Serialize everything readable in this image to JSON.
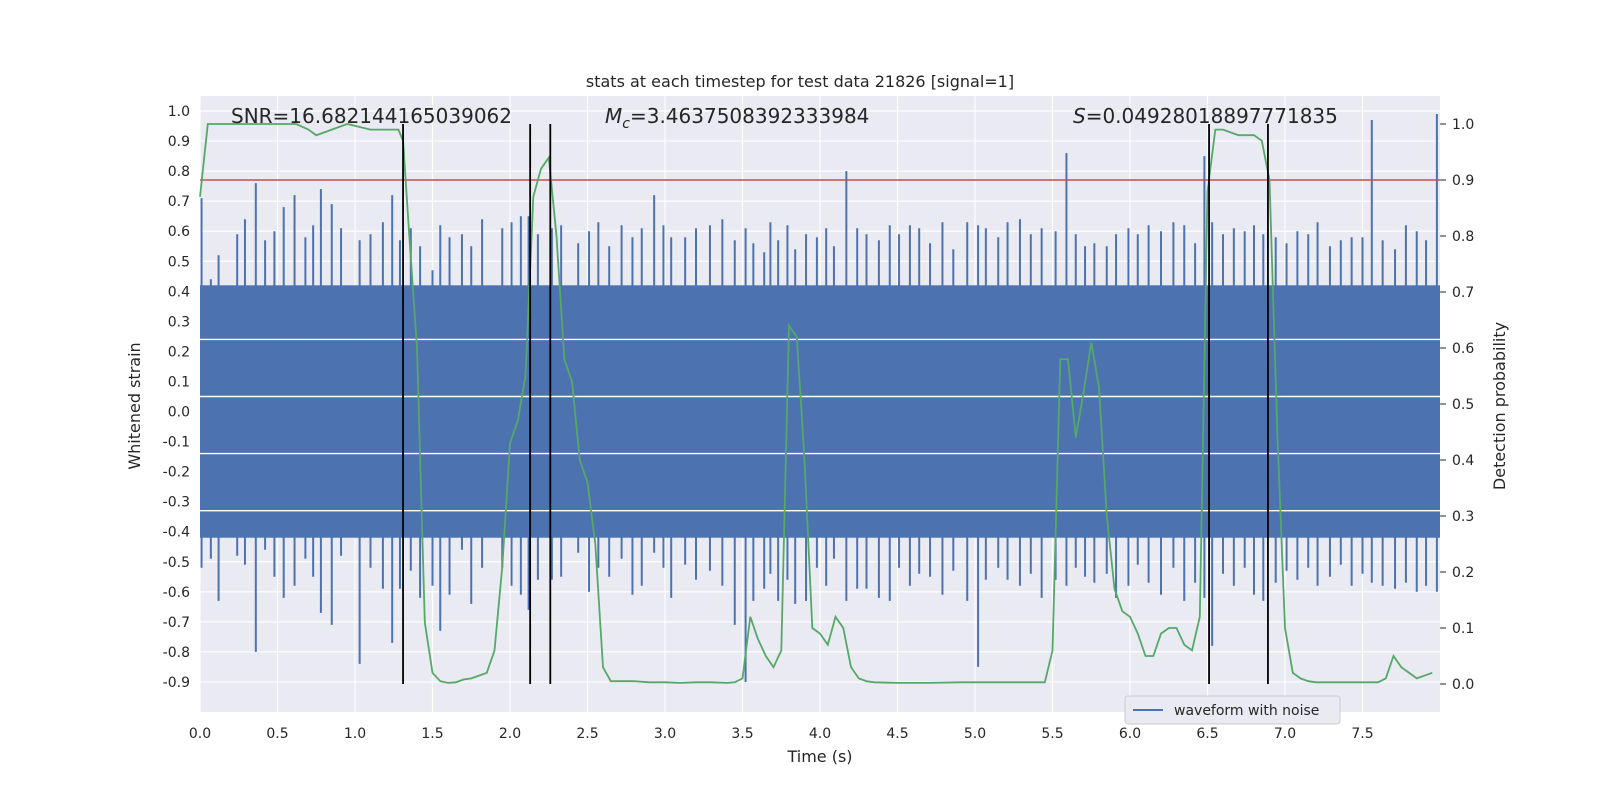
{
  "chart_data": {
    "type": "line",
    "title": "stats at each timestep for test data 21826 [signal=1]",
    "xlabel": "Time (s)",
    "ylabel": "Whitened strain",
    "y2label": "Detection probability",
    "xlim": [
      0.0,
      8.0
    ],
    "ylim": [
      -1.0,
      1.05
    ],
    "y2lim": [
      -0.05,
      1.05
    ],
    "xticks": [
      "0.0",
      "0.5",
      "1.0",
      "1.5",
      "2.0",
      "2.5",
      "3.0",
      "3.5",
      "4.0",
      "4.5",
      "5.0",
      "5.5",
      "6.0",
      "6.5",
      "7.0",
      "7.5"
    ],
    "yticks": [
      "1.0",
      "0.9",
      "0.8",
      "0.7",
      "0.6",
      "0.5",
      "0.4",
      "0.3",
      "0.2",
      "0.1",
      "0.0",
      "-0.1",
      "-0.2",
      "-0.3",
      "-0.4",
      "-0.5",
      "-0.6",
      "-0.7",
      "-0.8",
      "-0.9"
    ],
    "y2ticks": [
      "1.0",
      "0.9",
      "0.8",
      "0.7",
      "0.6",
      "0.5",
      "0.4",
      "0.3",
      "0.2",
      "0.1",
      "0.0"
    ],
    "annotations": {
      "snr": "SNR=16.682144165039062",
      "mc": "=3.4637508392333984",
      "s": "=0.04928018897771835"
    },
    "legend": {
      "label": "waveform with noise",
      "position": "bottom-right"
    },
    "threshold": 0.9,
    "vlines": [
      1.31,
      2.13,
      2.26,
      6.51,
      6.89
    ],
    "colors": {
      "waveform": "#4c72b0",
      "probability": "#55a868",
      "threshold": "#c44e52",
      "vline": "#000000",
      "background": "#eaeaf2"
    },
    "waveform": {
      "name": "waveform with noise",
      "spikes": [
        [
          0.01,
          0.71,
          -0.52
        ],
        [
          0.07,
          0.44,
          -0.49
        ],
        [
          0.12,
          0.52,
          -0.63
        ],
        [
          0.24,
          0.59,
          -0.48
        ],
        [
          0.29,
          0.64,
          -0.51
        ],
        [
          0.36,
          0.76,
          -0.8
        ],
        [
          0.42,
          0.57,
          -0.46
        ],
        [
          0.48,
          0.6,
          -0.55
        ],
        [
          0.54,
          0.68,
          -0.62
        ],
        [
          0.61,
          0.72,
          -0.58
        ],
        [
          0.68,
          0.58,
          -0.49
        ],
        [
          0.73,
          0.62,
          -0.55
        ],
        [
          0.78,
          0.74,
          -0.67
        ],
        [
          0.85,
          0.69,
          -0.71
        ],
        [
          0.91,
          0.61,
          -0.48
        ],
        [
          1.03,
          0.57,
          -0.84
        ],
        [
          1.1,
          0.59,
          -0.52
        ],
        [
          1.18,
          0.63,
          -0.59
        ],
        [
          1.24,
          0.72,
          -0.77
        ],
        [
          1.29,
          0.57,
          -0.59
        ],
        [
          1.36,
          0.61,
          -0.53
        ],
        [
          1.42,
          0.55,
          -0.62
        ],
        [
          1.5,
          0.47,
          -0.58
        ],
        [
          1.55,
          0.62,
          -0.73
        ],
        [
          1.61,
          0.58,
          -0.61
        ],
        [
          1.69,
          0.59,
          -0.46
        ],
        [
          1.75,
          0.55,
          -0.64
        ],
        [
          1.82,
          0.64,
          -0.52
        ],
        [
          1.95,
          0.61,
          -0.52
        ],
        [
          2.01,
          0.63,
          -0.58
        ],
        [
          2.07,
          0.65,
          -0.61
        ],
        [
          2.12,
          0.65,
          -0.66
        ],
        [
          2.18,
          0.59,
          -0.56
        ],
        [
          2.27,
          0.61,
          -0.56
        ],
        [
          2.33,
          0.62,
          -0.55
        ],
        [
          2.44,
          0.56,
          -0.47
        ],
        [
          2.51,
          0.6,
          -0.6
        ],
        [
          2.57,
          0.63,
          -0.52
        ],
        [
          2.64,
          0.55,
          -0.55
        ],
        [
          2.72,
          0.62,
          -0.49
        ],
        [
          2.79,
          0.58,
          -0.61
        ],
        [
          2.85,
          0.61,
          -0.58
        ],
        [
          2.93,
          0.72,
          -0.47
        ],
        [
          2.99,
          0.62,
          -0.52
        ],
        [
          3.04,
          0.58,
          -0.62
        ],
        [
          3.13,
          0.58,
          -0.51
        ],
        [
          3.2,
          0.61,
          -0.56
        ],
        [
          3.29,
          0.62,
          -0.53
        ],
        [
          3.37,
          0.64,
          -0.58
        ],
        [
          3.45,
          0.57,
          -0.71
        ],
        [
          3.52,
          0.61,
          -0.9
        ],
        [
          3.57,
          0.56,
          -0.63
        ],
        [
          3.64,
          0.53,
          -0.59
        ],
        [
          3.68,
          0.63,
          -0.54
        ],
        [
          3.73,
          0.57,
          -0.63
        ],
        [
          3.79,
          0.62,
          -0.56
        ],
        [
          3.84,
          0.54,
          -0.64
        ],
        [
          3.91,
          0.59,
          -0.63
        ],
        [
          3.98,
          0.58,
          -0.52
        ],
        [
          4.04,
          0.61,
          -0.58
        ],
        [
          4.09,
          0.55,
          -0.49
        ],
        [
          4.17,
          0.8,
          -0.63
        ],
        [
          4.24,
          0.61,
          -0.59
        ],
        [
          4.3,
          0.59,
          -0.59
        ],
        [
          4.38,
          0.57,
          -0.62
        ],
        [
          4.45,
          0.62,
          -0.63
        ],
        [
          4.51,
          0.59,
          -0.52
        ],
        [
          4.58,
          0.62,
          -0.58
        ],
        [
          4.64,
          0.61,
          -0.54
        ],
        [
          4.71,
          0.56,
          -0.55
        ],
        [
          4.79,
          0.63,
          -0.61
        ],
        [
          4.86,
          0.54,
          -0.53
        ],
        [
          4.95,
          0.63,
          -0.63
        ],
        [
          5.02,
          0.62,
          -0.85
        ],
        [
          5.07,
          0.61,
          -0.56
        ],
        [
          5.15,
          0.58,
          -0.52
        ],
        [
          5.21,
          0.63,
          -0.56
        ],
        [
          5.29,
          0.64,
          -0.58
        ],
        [
          5.36,
          0.59,
          -0.54
        ],
        [
          5.43,
          0.61,
          -0.62
        ],
        [
          5.52,
          0.6,
          -0.56
        ],
        [
          5.59,
          0.86,
          -0.58
        ],
        [
          5.65,
          0.59,
          -0.52
        ],
        [
          5.71,
          0.55,
          -0.55
        ],
        [
          5.77,
          0.56,
          -0.57
        ],
        [
          5.85,
          0.55,
          -0.54
        ],
        [
          5.91,
          0.59,
          -0.62
        ],
        [
          5.99,
          0.61,
          -0.58
        ],
        [
          6.05,
          0.59,
          -0.51
        ],
        [
          6.12,
          0.62,
          -0.57
        ],
        [
          6.2,
          0.6,
          -0.61
        ],
        [
          6.28,
          0.63,
          -0.52
        ],
        [
          6.35,
          0.62,
          -0.63
        ],
        [
          6.42,
          0.56,
          -0.57
        ],
        [
          6.48,
          0.85,
          -0.62
        ],
        [
          6.53,
          0.63,
          -0.78
        ],
        [
          6.6,
          0.59,
          -0.54
        ],
        [
          6.67,
          0.61,
          -0.58
        ],
        [
          6.74,
          0.6,
          -0.52
        ],
        [
          6.8,
          0.62,
          -0.61
        ],
        [
          6.86,
          0.59,
          -0.63
        ],
        [
          6.94,
          0.58,
          -0.57
        ],
        [
          7.01,
          0.56,
          -0.53
        ],
        [
          7.08,
          0.6,
          -0.56
        ],
        [
          7.15,
          0.59,
          -0.52
        ],
        [
          7.21,
          0.63,
          -0.58
        ],
        [
          7.29,
          0.55,
          -0.55
        ],
        [
          7.36,
          0.57,
          -0.51
        ],
        [
          7.43,
          0.58,
          -0.58
        ],
        [
          7.5,
          0.58,
          -0.54
        ],
        [
          7.56,
          0.97,
          -0.57
        ],
        [
          7.63,
          0.57,
          -0.58
        ],
        [
          7.71,
          0.54,
          -0.59
        ],
        [
          7.78,
          0.62,
          -0.57
        ],
        [
          7.85,
          0.6,
          -0.6
        ],
        [
          7.91,
          0.57,
          -0.58
        ],
        [
          7.98,
          0.99,
          -0.6
        ]
      ]
    },
    "probability": {
      "name": "detection probability",
      "x": [
        0.0,
        0.05,
        0.1,
        0.3,
        0.5,
        0.62,
        0.7,
        0.75,
        0.85,
        0.95,
        1.1,
        1.2,
        1.28,
        1.31,
        1.35,
        1.4,
        1.45,
        1.5,
        1.55,
        1.6,
        1.65,
        1.7,
        1.75,
        1.8,
        1.85,
        1.9,
        1.95,
        2.0,
        2.05,
        2.1,
        2.15,
        2.2,
        2.25,
        2.3,
        2.35,
        2.4,
        2.45,
        2.5,
        2.55,
        2.6,
        2.65,
        2.7,
        2.8,
        2.9,
        3.0,
        3.1,
        3.2,
        3.3,
        3.4,
        3.45,
        3.5,
        3.55,
        3.6,
        3.65,
        3.7,
        3.75,
        3.8,
        3.85,
        3.9,
        3.95,
        4.0,
        4.05,
        4.1,
        4.15,
        4.2,
        4.25,
        4.3,
        4.35,
        4.5,
        4.7,
        4.9,
        5.1,
        5.3,
        5.45,
        5.5,
        5.55,
        5.6,
        5.65,
        5.7,
        5.75,
        5.8,
        5.85,
        5.9,
        5.95,
        6.0,
        6.05,
        6.1,
        6.15,
        6.2,
        6.25,
        6.3,
        6.35,
        6.4,
        6.45,
        6.5,
        6.55,
        6.6,
        6.7,
        6.8,
        6.85,
        6.9,
        6.95,
        7.0,
        7.05,
        7.1,
        7.15,
        7.2,
        7.3,
        7.4,
        7.5,
        7.6,
        7.65,
        7.7,
        7.75,
        7.85,
        7.95
      ],
      "y": [
        0.87,
        1.0,
        1.0,
        1.0,
        1.0,
        1.0,
        0.99,
        0.98,
        0.99,
        1.0,
        0.99,
        0.99,
        0.99,
        0.97,
        0.8,
        0.6,
        0.11,
        0.02,
        0.005,
        0.002,
        0.003,
        0.008,
        0.01,
        0.015,
        0.02,
        0.06,
        0.21,
        0.43,
        0.47,
        0.55,
        0.87,
        0.92,
        0.94,
        0.8,
        0.58,
        0.54,
        0.4,
        0.36,
        0.25,
        0.03,
        0.005,
        0.005,
        0.005,
        0.003,
        0.003,
        0.002,
        0.003,
        0.003,
        0.002,
        0.003,
        0.01,
        0.12,
        0.08,
        0.05,
        0.03,
        0.06,
        0.64,
        0.62,
        0.4,
        0.1,
        0.09,
        0.07,
        0.12,
        0.1,
        0.03,
        0.01,
        0.005,
        0.003,
        0.002,
        0.002,
        0.003,
        0.003,
        0.003,
        0.003,
        0.06,
        0.58,
        0.58,
        0.44,
        0.52,
        0.61,
        0.53,
        0.3,
        0.17,
        0.13,
        0.12,
        0.09,
        0.05,
        0.05,
        0.09,
        0.1,
        0.1,
        0.07,
        0.06,
        0.12,
        0.88,
        0.99,
        0.99,
        0.98,
        0.98,
        0.97,
        0.9,
        0.45,
        0.1,
        0.02,
        0.01,
        0.005,
        0.003,
        0.003,
        0.003,
        0.003,
        0.003,
        0.01,
        0.05,
        0.03,
        0.01,
        0.02
      ]
    }
  }
}
